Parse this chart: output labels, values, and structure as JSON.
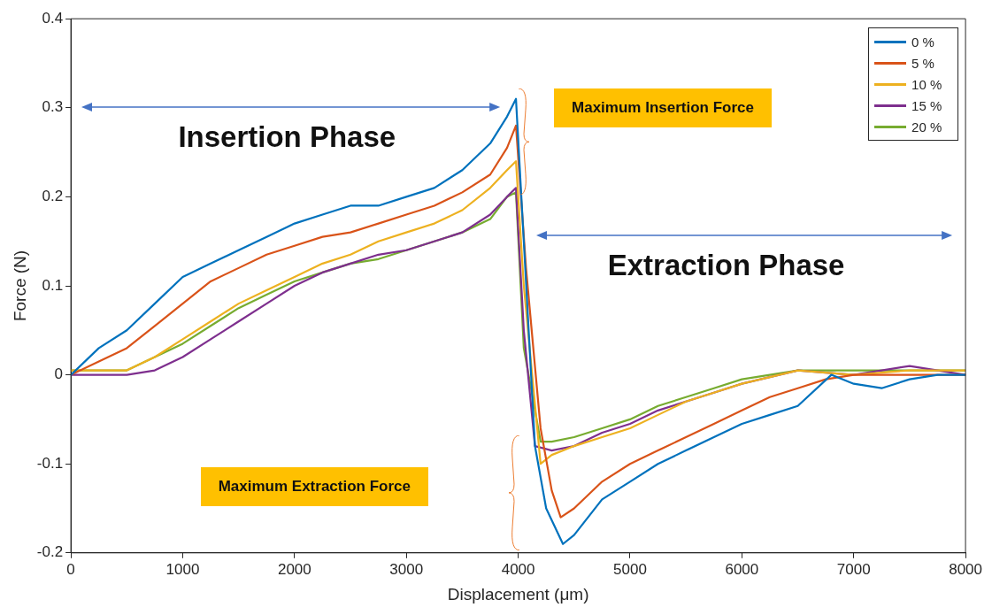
{
  "chart_data": {
    "type": "line",
    "xlabel": "Displacement (μm)",
    "ylabel": "Force (N)",
    "xlim": [
      0,
      8000
    ],
    "xticks": [
      0,
      1000,
      2000,
      3000,
      4000,
      5000,
      6000,
      7000,
      8000
    ],
    "ylim": [
      -0.2,
      0.4
    ],
    "yticks": [
      -0.2,
      -0.1,
      0,
      0.1,
      0.2,
      0.3,
      0.4
    ],
    "grid": false,
    "legend": "top right",
    "marker": "none",
    "line_style": "solid",
    "annotations": [
      "Insertion Phase",
      "Extraction Phase",
      "Maximum Insertion Force",
      "Maximum Extraction Force"
    ],
    "series": [
      {
        "name": "0 %",
        "color": "#0072bd",
        "x": [
          0,
          250,
          500,
          750,
          1000,
          1250,
          1500,
          1750,
          2000,
          2250,
          2500,
          2750,
          3000,
          3250,
          3500,
          3750,
          3900,
          3980,
          4050,
          4150,
          4250,
          4400,
          4500,
          4750,
          5000,
          5250,
          5500,
          5750,
          6000,
          6250,
          6500,
          6800,
          7000,
          7250,
          7500,
          7750,
          8000
        ],
        "values": [
          0,
          0.03,
          0.05,
          0.08,
          0.11,
          0.125,
          0.14,
          0.155,
          0.17,
          0.18,
          0.19,
          0.19,
          0.2,
          0.21,
          0.23,
          0.26,
          0.29,
          0.31,
          0.15,
          -0.08,
          -0.15,
          -0.19,
          -0.18,
          -0.14,
          -0.12,
          -0.1,
          -0.085,
          -0.07,
          -0.055,
          -0.045,
          -0.035,
          0,
          -0.01,
          -0.015,
          -0.005,
          0,
          0
        ]
      },
      {
        "name": "5 %",
        "color": "#d95319",
        "x": [
          0,
          250,
          500,
          750,
          1000,
          1250,
          1500,
          1750,
          2000,
          2250,
          2500,
          2750,
          3000,
          3250,
          3500,
          3750,
          3900,
          3980,
          4070,
          4200,
          4300,
          4380,
          4500,
          4750,
          5000,
          5250,
          5500,
          5750,
          6000,
          6250,
          6500,
          6750,
          7000,
          7500,
          8000
        ],
        "values": [
          0,
          0.015,
          0.03,
          0.055,
          0.08,
          0.105,
          0.12,
          0.135,
          0.145,
          0.155,
          0.16,
          0.17,
          0.18,
          0.19,
          0.205,
          0.225,
          0.255,
          0.28,
          0.12,
          -0.06,
          -0.13,
          -0.16,
          -0.15,
          -0.12,
          -0.1,
          -0.085,
          -0.07,
          -0.055,
          -0.04,
          -0.025,
          -0.015,
          -0.005,
          0,
          0,
          0
        ]
      },
      {
        "name": "10 %",
        "color": "#edb120",
        "x": [
          0,
          250,
          500,
          750,
          1000,
          1250,
          1500,
          1750,
          2000,
          2250,
          2500,
          2750,
          3000,
          3250,
          3500,
          3750,
          3900,
          3980,
          4050,
          4200,
          4300,
          4500,
          4750,
          5000,
          5250,
          5500,
          5750,
          6000,
          6500,
          7000,
          7500,
          8000
        ],
        "values": [
          0.005,
          0.005,
          0.005,
          0.02,
          0.04,
          0.06,
          0.08,
          0.095,
          0.11,
          0.125,
          0.135,
          0.15,
          0.16,
          0.17,
          0.185,
          0.21,
          0.23,
          0.24,
          0.1,
          -0.1,
          -0.09,
          -0.08,
          -0.07,
          -0.06,
          -0.045,
          -0.03,
          -0.02,
          -0.01,
          0.005,
          0,
          0.005,
          0.005
        ]
      },
      {
        "name": "15 %",
        "color": "#7e2f8e",
        "x": [
          0,
          250,
          500,
          750,
          1000,
          1250,
          1500,
          1750,
          2000,
          2250,
          2500,
          2750,
          3000,
          3250,
          3500,
          3750,
          3900,
          3980,
          4050,
          4150,
          4300,
          4500,
          4750,
          5000,
          5250,
          5500,
          5750,
          6000,
          6500,
          7000,
          7500,
          8000
        ],
        "values": [
          0,
          0,
          0,
          0.005,
          0.02,
          0.04,
          0.06,
          0.08,
          0.1,
          0.115,
          0.125,
          0.135,
          0.14,
          0.15,
          0.16,
          0.18,
          0.2,
          0.21,
          0.05,
          -0.08,
          -0.085,
          -0.08,
          -0.065,
          -0.055,
          -0.04,
          -0.03,
          -0.02,
          -0.01,
          0.005,
          0,
          0.01,
          0
        ]
      },
      {
        "name": "20 %",
        "color": "#77ac30",
        "x": [
          0,
          250,
          500,
          750,
          1000,
          1250,
          1500,
          1750,
          2000,
          2250,
          2500,
          2750,
          3000,
          3250,
          3500,
          3750,
          3900,
          3980,
          4050,
          4200,
          4300,
          4500,
          4750,
          5000,
          5250,
          5500,
          5750,
          6000,
          6500,
          7000,
          7500,
          8000
        ],
        "values": [
          0.005,
          0.005,
          0.005,
          0.02,
          0.035,
          0.055,
          0.075,
          0.09,
          0.105,
          0.115,
          0.125,
          0.13,
          0.14,
          0.15,
          0.16,
          0.175,
          0.2,
          0.205,
          0.03,
          -0.075,
          -0.075,
          -0.07,
          -0.06,
          -0.05,
          -0.035,
          -0.025,
          -0.015,
          -0.005,
          0.005,
          0.005,
          0.005,
          0.005
        ]
      }
    ]
  }
}
